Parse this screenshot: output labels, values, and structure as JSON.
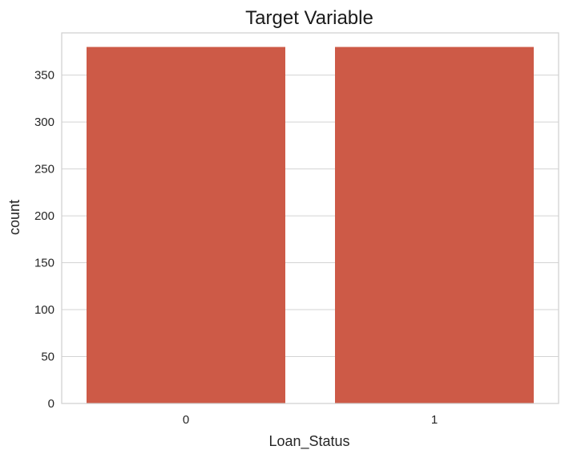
{
  "chart_data": {
    "type": "bar",
    "title": "Target Variable",
    "xlabel": "Loan_Status",
    "ylabel": "count",
    "categories": [
      "0",
      "1"
    ],
    "values": [
      380,
      380
    ],
    "ylim": [
      0,
      395
    ],
    "yticks": [
      0,
      50,
      100,
      150,
      200,
      250,
      300,
      350
    ],
    "grid": true,
    "legend": "none",
    "bar_color": "#cd5a47",
    "grid_color": "#d3d3d3"
  }
}
